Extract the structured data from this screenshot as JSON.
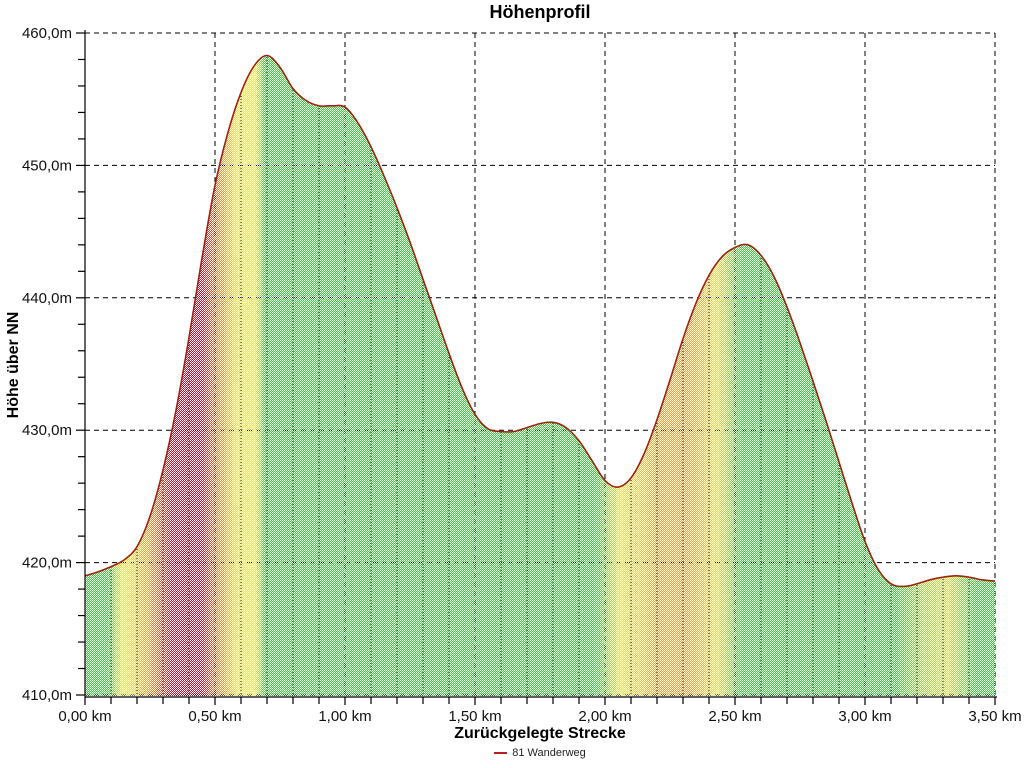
{
  "chart_data": {
    "type": "area",
    "title": "Höhenprofil",
    "xlabel": "Zurückgelegte Strecke",
    "ylabel": "Höhe über NN",
    "x_unit": "km",
    "y_unit": "m",
    "xlim": [
      0,
      3.5
    ],
    "ylim": [
      410,
      460
    ],
    "x_ticks": [
      {
        "value": 0.0,
        "label": "0,00 km"
      },
      {
        "value": 0.5,
        "label": "0,50 km"
      },
      {
        "value": 1.0,
        "label": "1,00 km"
      },
      {
        "value": 1.5,
        "label": "1,50 km"
      },
      {
        "value": 2.0,
        "label": "2,00 km"
      },
      {
        "value": 2.5,
        "label": "2,50 km"
      },
      {
        "value": 3.0,
        "label": "3,00 km"
      },
      {
        "value": 3.5,
        "label": "3,50 km"
      }
    ],
    "y_ticks": [
      {
        "value": 460,
        "label": "460,0m"
      },
      {
        "value": 450,
        "label": "450,0m"
      },
      {
        "value": 440,
        "label": "440,0m"
      },
      {
        "value": 430,
        "label": "430,0m"
      },
      {
        "value": 420,
        "label": "420,0m"
      },
      {
        "value": 410,
        "label": "410,0m"
      }
    ],
    "x_minor_step": 0.1,
    "y_minor_step": 2,
    "grid": {
      "major_style": "dashed",
      "minor_style": "dotted-inside-area-only",
      "color": "#000000"
    },
    "legend": {
      "position": "bottom-center",
      "items": [
        {
          "label": "81 Wanderweg",
          "color": "#b22222"
        }
      ]
    },
    "series": [
      {
        "name": "81 Wanderweg",
        "line_color": "#a02014",
        "fill_style": "slope-colored-dither",
        "points": [
          [
            0.0,
            419.0
          ],
          [
            0.05,
            419.3
          ],
          [
            0.1,
            419.7
          ],
          [
            0.15,
            420.2
          ],
          [
            0.2,
            421.2
          ],
          [
            0.25,
            423.5
          ],
          [
            0.3,
            427.0
          ],
          [
            0.35,
            431.5
          ],
          [
            0.4,
            437.0
          ],
          [
            0.45,
            443.0
          ],
          [
            0.5,
            448.5
          ],
          [
            0.55,
            452.5
          ],
          [
            0.6,
            455.5
          ],
          [
            0.65,
            457.5
          ],
          [
            0.7,
            458.3
          ],
          [
            0.75,
            457.4
          ],
          [
            0.8,
            455.8
          ],
          [
            0.85,
            454.9
          ],
          [
            0.9,
            454.5
          ],
          [
            0.95,
            454.5
          ],
          [
            1.0,
            454.4
          ],
          [
            1.05,
            453.2
          ],
          [
            1.1,
            451.4
          ],
          [
            1.15,
            449.2
          ],
          [
            1.2,
            446.8
          ],
          [
            1.25,
            444.2
          ],
          [
            1.3,
            441.4
          ],
          [
            1.35,
            438.6
          ],
          [
            1.4,
            435.8
          ],
          [
            1.45,
            433.2
          ],
          [
            1.5,
            431.2
          ],
          [
            1.55,
            430.1
          ],
          [
            1.6,
            429.9
          ],
          [
            1.65,
            429.9
          ],
          [
            1.7,
            430.2
          ],
          [
            1.75,
            430.5
          ],
          [
            1.8,
            430.6
          ],
          [
            1.85,
            430.2
          ],
          [
            1.9,
            429.2
          ],
          [
            1.95,
            427.7
          ],
          [
            2.0,
            426.2
          ],
          [
            2.05,
            425.7
          ],
          [
            2.1,
            426.4
          ],
          [
            2.15,
            428.2
          ],
          [
            2.2,
            430.8
          ],
          [
            2.25,
            433.8
          ],
          [
            2.3,
            436.9
          ],
          [
            2.35,
            439.6
          ],
          [
            2.4,
            441.7
          ],
          [
            2.45,
            443.1
          ],
          [
            2.5,
            443.8
          ],
          [
            2.55,
            444.0
          ],
          [
            2.6,
            443.2
          ],
          [
            2.65,
            441.6
          ],
          [
            2.7,
            439.3
          ],
          [
            2.75,
            436.6
          ],
          [
            2.8,
            433.7
          ],
          [
            2.85,
            430.7
          ],
          [
            2.9,
            427.6
          ],
          [
            2.95,
            424.5
          ],
          [
            3.0,
            421.6
          ],
          [
            3.05,
            419.5
          ],
          [
            3.1,
            418.4
          ],
          [
            3.15,
            418.2
          ],
          [
            3.2,
            418.4
          ],
          [
            3.25,
            418.7
          ],
          [
            3.3,
            418.9
          ],
          [
            3.35,
            419.0
          ],
          [
            3.4,
            418.9
          ],
          [
            3.45,
            418.7
          ],
          [
            3.5,
            418.6
          ]
        ]
      }
    ],
    "slope_color_stops": [
      [
        0.0,
        "#3ecf3e"
      ],
      [
        0.09,
        "#3ecf3e"
      ],
      [
        0.145,
        "#f2ee35"
      ],
      [
        0.19,
        "#f2d230"
      ],
      [
        0.245,
        "#ef9626"
      ],
      [
        0.295,
        "#dc4f2b"
      ],
      [
        0.335,
        "#c41232"
      ],
      [
        0.45,
        "#c41232"
      ],
      [
        0.49,
        "#dc5f28"
      ],
      [
        0.53,
        "#ef9626"
      ],
      [
        0.595,
        "#f2ee35"
      ],
      [
        0.655,
        "#f2ee35"
      ],
      [
        0.69,
        "#3ecf3e"
      ],
      [
        1.97,
        "#3ecf3e"
      ],
      [
        2.06,
        "#ede336"
      ],
      [
        2.13,
        "#edc934"
      ],
      [
        2.21,
        "#ef9d28"
      ],
      [
        2.33,
        "#ef9d28"
      ],
      [
        2.43,
        "#eedd3a"
      ],
      [
        2.52,
        "#3ecf3e"
      ],
      [
        3.12,
        "#3ecf3e"
      ],
      [
        3.22,
        "#9bd93c"
      ],
      [
        3.32,
        "#cfe438"
      ],
      [
        3.42,
        "#3ecf3e"
      ],
      [
        3.5,
        "#3ecf3e"
      ]
    ],
    "colors": {
      "flat_green": "#3ecf3e",
      "moderate_yellow": "#f2ee35",
      "steep_orange": "#ef9626",
      "steepest_red": "#c41232",
      "line": "#a02014",
      "grid": "#000000",
      "text": "#000000",
      "background": "#ffffff"
    }
  }
}
